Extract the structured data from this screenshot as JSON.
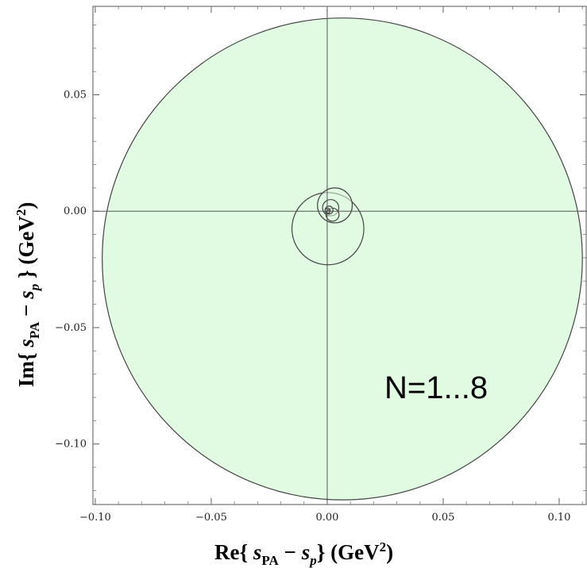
{
  "chart_data": {
    "type": "scatter",
    "title": "",
    "xlabel": "Re{ s_PA − s_p }  (GeV²)",
    "ylabel": "Im{ s_PA − s_p }  (GeV²)",
    "xlim": [
      -0.101,
      0.112
    ],
    "ylim": [
      -0.126,
      0.088
    ],
    "x_ticks": [
      -0.1,
      -0.05,
      0.0,
      0.05,
      0.1
    ],
    "x_tick_labels": [
      "−0.10",
      "−0.05",
      "0.00",
      "0.05",
      "0.10"
    ],
    "y_ticks": [
      0.05,
      0.0,
      -0.05,
      -0.1
    ],
    "y_tick_labels": [
      "0.05",
      "0.00",
      "−0.05",
      "−0.10"
    ],
    "zero_lines": true,
    "annotation": "N=1...8",
    "fill_color": "#e1fbe3",
    "stroke_color": "#444444",
    "series": [
      {
        "cx": 0.0065,
        "cy": -0.0205,
        "r": 0.1035
      },
      {
        "cx": 0.0003,
        "cy": -0.0075,
        "r": 0.0155
      },
      {
        "cx": 0.0033,
        "cy": 0.0025,
        "r": 0.0075
      },
      {
        "cx": 0.0015,
        "cy": 0.0015,
        "r": 0.0035
      },
      {
        "cx": 0.0023,
        "cy": -0.0015,
        "r": 0.0028
      },
      {
        "cx": 0.0008,
        "cy": 0.0005,
        "r": 0.0017
      },
      {
        "cx": 0.0002,
        "cy": 0.0002,
        "r": 0.0011
      },
      {
        "cx": 0.0004,
        "cy": -0.0001,
        "r": 0.0007
      }
    ]
  }
}
